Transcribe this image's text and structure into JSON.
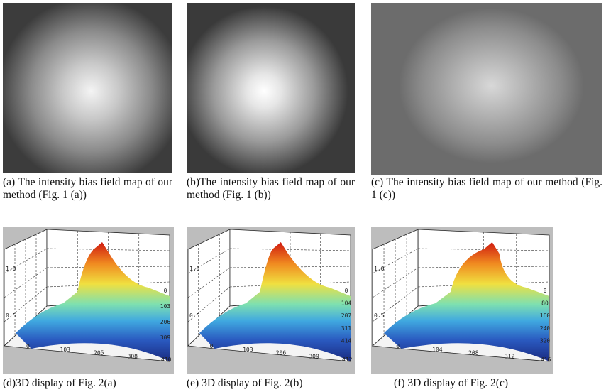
{
  "panels": [
    {
      "caption": "(a) The intensity bias field map of our method (Fig. 1 (a))"
    },
    {
      "caption": "(b)The intensity bias field map of our method (Fig. 1 (b))"
    },
    {
      "caption": "(c) The intensity bias field map of our method (Fig. 1 (c))"
    }
  ],
  "plots": [
    {
      "caption": "(d)3D display of Fig. 2(a)",
      "z_ticks": [
        "1.0",
        "0.5"
      ],
      "x_ticks": [
        "0",
        "103",
        "205",
        "308",
        "410"
      ],
      "y_ticks": [
        "0",
        "103",
        "206",
        "309"
      ]
    },
    {
      "caption": "(e) 3D display of Fig. 2(b)",
      "z_ticks": [
        "1.0",
        "0.5"
      ],
      "x_ticks": [
        "0",
        "103",
        "206",
        "309",
        "412"
      ],
      "y_ticks": [
        "0",
        "104",
        "207",
        "311",
        "414"
      ]
    },
    {
      "caption": "(f) 3D display of Fig. 2(c)",
      "z_ticks": [
        "1.0",
        "0.5"
      ],
      "x_ticks": [
        "0",
        "104",
        "208",
        "312",
        "416"
      ],
      "y_ticks": [
        "0",
        "80",
        "160",
        "240",
        "320"
      ]
    }
  ]
}
